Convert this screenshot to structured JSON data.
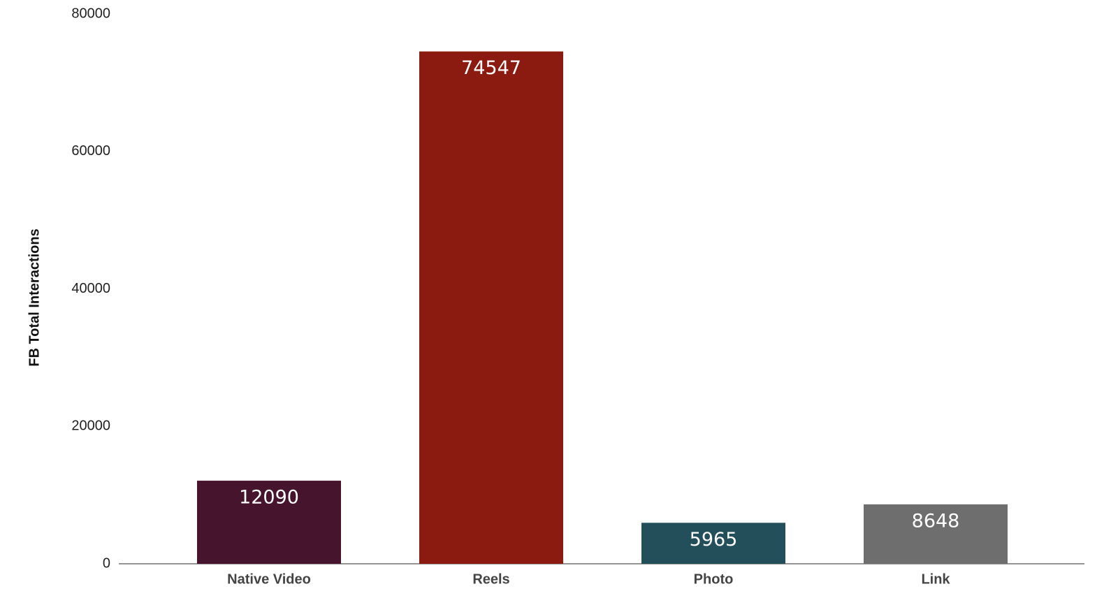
{
  "chart_data": {
    "type": "bar",
    "y_label": "FB Total Interactions",
    "categories": [
      "Native Video",
      "Reels",
      "Photo",
      "Link"
    ],
    "values": [
      12090,
      74547,
      5965,
      8648
    ],
    "colors": [
      "#46142c",
      "#8b1a10",
      "#234f5a",
      "#6e6e6e"
    ],
    "ylim": [
      0,
      80000
    ],
    "yticks": [
      0,
      20000,
      40000,
      60000,
      80000
    ],
    "grid": false
  }
}
